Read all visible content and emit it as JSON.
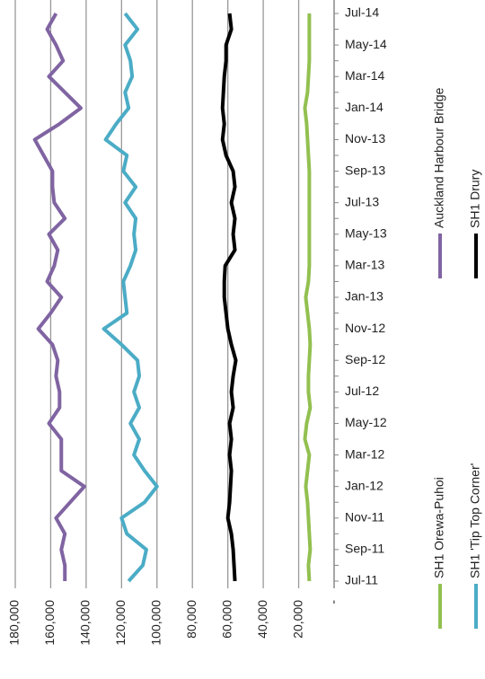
{
  "chart_data": {
    "type": "line",
    "legend": "right",
    "grid": true,
    "categories": [
      "Jul-11",
      null,
      "Sep-11",
      null,
      "Nov-11",
      null,
      "Jan-12",
      null,
      "Mar-12",
      null,
      "May-12",
      null,
      "Jul-12",
      null,
      "Sep-12",
      null,
      "Nov-12",
      null,
      "Jan-13",
      null,
      "Mar-13",
      null,
      "May-13",
      null,
      "Jul-13",
      null,
      "Sep-13",
      null,
      "Nov-13",
      null,
      "Jan-14",
      null,
      "Mar-14",
      null,
      "May-14",
      null,
      "Jul-14"
    ],
    "ylim": [
      180000,
      0
    ],
    "yticks": [
      {
        "value": 180000,
        "label": "180,000"
      },
      {
        "value": 160000,
        "label": "160,000"
      },
      {
        "value": 140000,
        "label": "140,000"
      },
      {
        "value": 120000,
        "label": "120,000"
      },
      {
        "value": 100000,
        "label": "100,000"
      },
      {
        "value": 80000,
        "label": "80,000"
      },
      {
        "value": 60000,
        "label": "60,000"
      },
      {
        "value": 40000,
        "label": "40,000"
      },
      {
        "value": 20000,
        "label": "20,000"
      },
      {
        "value": 0,
        "label": "-"
      }
    ],
    "series": [
      {
        "name": "SH1 Orewa-Puhoi",
        "color": "#92c050",
        "values": [
          14000,
          14500,
          13500,
          14000,
          14500,
          15000,
          16000,
          15000,
          14000,
          16500,
          15500,
          13500,
          14500,
          14500,
          14000,
          13500,
          14000,
          15000,
          16000,
          14500,
          14000,
          14000,
          14000,
          14000,
          14000,
          14000,
          14000,
          14500,
          15000,
          15500,
          16500,
          15000,
          14500,
          14000,
          14000,
          14000,
          14000
        ]
      },
      {
        "name": "SH1 'Tip Top Corner'",
        "color": "#4bacc6",
        "values": [
          116000,
          108000,
          106000,
          117000,
          120000,
          107000,
          100000,
          107000,
          113000,
          110000,
          115000,
          110000,
          113000,
          110000,
          111000,
          120000,
          130000,
          117000,
          118000,
          119000,
          115000,
          112000,
          113000,
          112000,
          118000,
          112000,
          119000,
          117000,
          129000,
          123000,
          116000,
          118000,
          114000,
          115000,
          118000,
          111000,
          118000
        ]
      },
      {
        "name": "Auckland Harbour Bridge",
        "color": "#8064a2",
        "values": [
          152000,
          152000,
          154000,
          152000,
          157000,
          149000,
          141000,
          154000,
          154000,
          154000,
          161000,
          155000,
          155000,
          157000,
          156000,
          159000,
          167000,
          160000,
          154000,
          162000,
          158000,
          156000,
          161000,
          152000,
          158000,
          159000,
          159000,
          164000,
          169000,
          155000,
          143000,
          152000,
          161000,
          153000,
          157000,
          162000,
          157000
        ]
      },
      {
        "name": "SH1 Drury",
        "color": "#000000",
        "values": [
          56000,
          56500,
          57000,
          58000,
          60000,
          59000,
          58500,
          58000,
          59000,
          58000,
          59000,
          57000,
          58000,
          57000,
          55500,
          58000,
          60000,
          61000,
          62000,
          62000,
          61500,
          56000,
          57000,
          56000,
          58000,
          56000,
          57000,
          61000,
          63000,
          62000,
          63000,
          62500,
          62000,
          61000,
          61000,
          58000,
          59000
        ]
      }
    ]
  }
}
